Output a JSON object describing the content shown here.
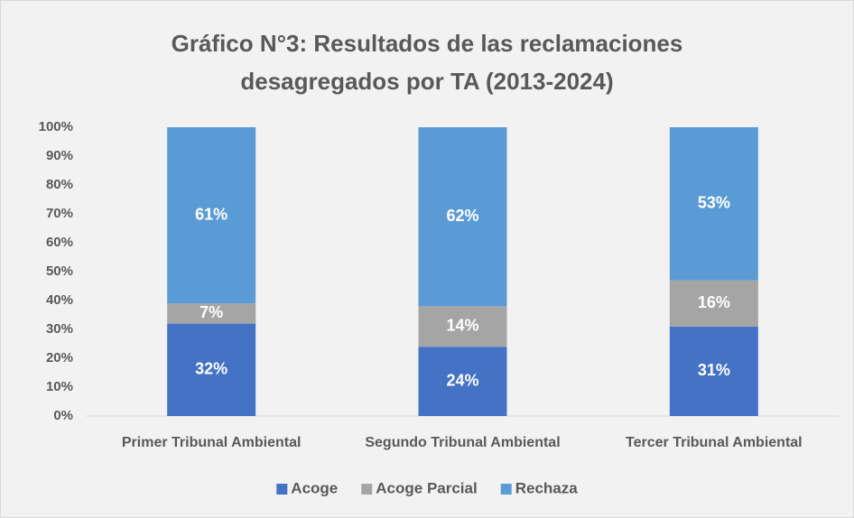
{
  "chart_data": {
    "type": "stacked_bar",
    "title": [
      "Gráfico N°3: Resultados de las reclamaciones",
      "desagregados por TA (2013-2024)"
    ],
    "categories": [
      "Primer Tribunal Ambiental",
      "Segundo Tribunal Ambiental",
      "Tercer Tribunal Ambiental"
    ],
    "series": [
      {
        "name": "Acoge",
        "color": "#4472c4",
        "values": [
          32,
          24,
          31
        ],
        "value_labels": [
          "32%",
          "24%",
          "31%"
        ]
      },
      {
        "name": "Acoge Parcial",
        "color": "#a5a5a5",
        "values": [
          7,
          14,
          16
        ],
        "value_labels": [
          "7%",
          "14%",
          "16%"
        ]
      },
      {
        "name": "Rechaza",
        "color": "#5b9bd5",
        "values": [
          61,
          62,
          53
        ],
        "value_labels": [
          "61%",
          "62%",
          "53%"
        ]
      }
    ],
    "ylim": [
      0,
      100
    ],
    "yticks": [
      {
        "value": 0,
        "label": "0%"
      },
      {
        "value": 10,
        "label": "10%"
      },
      {
        "value": 20,
        "label": "20%"
      },
      {
        "value": 30,
        "label": "30%"
      },
      {
        "value": 40,
        "label": "40%"
      },
      {
        "value": 50,
        "label": "50%"
      },
      {
        "value": 60,
        "label": "60%"
      },
      {
        "value": 70,
        "label": "70%"
      },
      {
        "value": 80,
        "label": "80%"
      },
      {
        "value": 90,
        "label": "90%"
      },
      {
        "value": 100,
        "label": "100%"
      }
    ],
    "grid": false,
    "legend": "bottom"
  }
}
